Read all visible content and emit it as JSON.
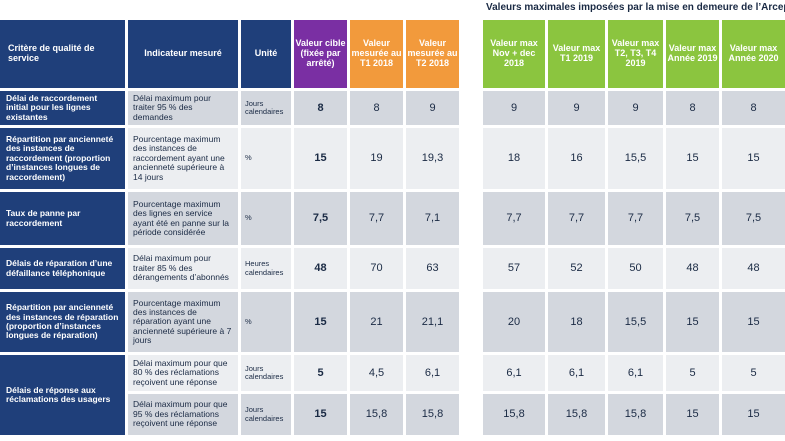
{
  "caption": "Valeurs maximales imposées par la mise en demeure de l’Arcep",
  "headers": {
    "criterion": "Critère de qualité de service",
    "indicator": "Indicateur mesuré",
    "unit": "Unité",
    "target": "Valeur cible (fixée par arrêté)",
    "measured_t1": "Valeur mesurée au T1 2018",
    "measured_t2": "Valeur mesurée au T2 2018",
    "max_nov_dec_2018": "Valeur max Nov + dec 2018",
    "max_t1_2019": "Valeur max T1 2019",
    "max_t2_t4_2019": "Valeur max T2, T3, T4 2019",
    "max_year_2019": "Valeur max Année 2019",
    "max_year_2020": "Valeur max Année 2020"
  },
  "criteria": [
    "Délai de raccordement initial pour les lignes existantes",
    "Répartition par ancienneté des instances de raccordement (proportion d’instances longues de raccordement)",
    "Taux de panne par raccordement",
    "Délais de réparation d’une défaillance téléphonique",
    "Répartition par ancienneté des instances de réparation (proportion d’instances longues de réparation)",
    "Délais de réponse aux réclamations des usagers"
  ],
  "rows": [
    {
      "indicator": "Délai maximum pour traiter 95 % des demandes",
      "unit": "Jours calendaires",
      "target": "8",
      "t1": "8",
      "t2": "9",
      "max": [
        "9",
        "9",
        "9",
        "8",
        "8"
      ]
    },
    {
      "indicator": "Pourcentage maximum des instances de raccordement ayant une ancienneté supérieure à 14 jours",
      "unit": "%",
      "target": "15",
      "t1": "19",
      "t2": "19,3",
      "max": [
        "18",
        "16",
        "15,5",
        "15",
        "15"
      ]
    },
    {
      "indicator": "Pourcentage maximum des lignes en service ayant été en panne sur la période considérée",
      "unit": "%",
      "target": "7,5",
      "t1": "7,7",
      "t2": "7,1",
      "max": [
        "7,7",
        "7,7",
        "7,7",
        "7,5",
        "7,5"
      ]
    },
    {
      "indicator": "Délai maximum pour traiter 85 % des dérangements d’abonnés",
      "unit": "Heures calendaires",
      "target": "48",
      "t1": "70",
      "t2": "63",
      "max": [
        "57",
        "52",
        "50",
        "48",
        "48"
      ]
    },
    {
      "indicator": "Pourcentage maximum des instances de réparation ayant une ancienneté supérieure à 7 jours",
      "unit": "%",
      "target": "15",
      "t1": "21",
      "t2": "21,1",
      "max": [
        "20",
        "18",
        "15,5",
        "15",
        "15"
      ]
    },
    {
      "indicator": "Délai maximum pour que 80 % des réclamations reçoivent une réponse",
      "unit": "Jours calendaires",
      "target": "5",
      "t1": "4,5",
      "t2": "6,1",
      "max": [
        "6,1",
        "6,1",
        "6,1",
        "5",
        "5"
      ]
    },
    {
      "indicator": "Délai maximum pour que 95 % des réclamations reçoivent une réponse",
      "unit": "Jours calendaires",
      "target": "15",
      "t1": "15,8",
      "t2": "15,8",
      "max": [
        "15,8",
        "15,8",
        "15,8",
        "15",
        "15"
      ]
    }
  ]
}
